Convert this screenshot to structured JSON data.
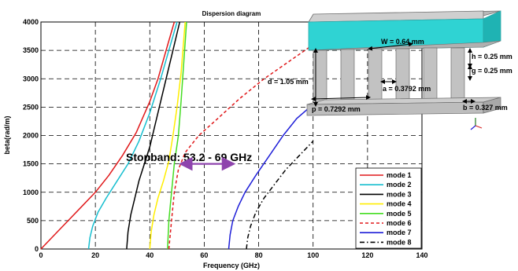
{
  "chart_data": {
    "type": "line",
    "title": "Dispersion diagram",
    "xlabel": "Frequency (GHz)",
    "ylabel": "beta(rad/m)",
    "xlim": [
      0,
      140
    ],
    "ylim": [
      0,
      4000
    ],
    "xticks": [
      "0",
      "20",
      "40",
      "60",
      "80",
      "100",
      "120",
      "140"
    ],
    "yticks": [
      "0",
      "500",
      "1000",
      "1500",
      "2000",
      "2500",
      "3000",
      "3500",
      "4000"
    ],
    "grid": true,
    "legend_position": "bottom-right",
    "series": [
      {
        "name": "mode 1",
        "color": "#e0191b",
        "dash": "solid",
        "x": [
          0,
          5,
          10,
          15,
          20,
          25,
          30,
          35,
          40,
          43,
          46,
          49
        ],
        "y": [
          0,
          250,
          500,
          750,
          1000,
          1300,
          1650,
          2050,
          2600,
          3000,
          3500,
          4000
        ]
      },
      {
        "name": "mode 2",
        "color": "#17becf",
        "dash": "solid",
        "x": [
          17.5,
          18,
          19,
          21,
          24,
          28,
          32,
          36,
          40,
          44,
          47,
          50
        ],
        "y": [
          0,
          200,
          400,
          650,
          900,
          1200,
          1500,
          1900,
          2400,
          3000,
          3500,
          4000
        ]
      },
      {
        "name": "mode 3",
        "color": "#000000",
        "dash": "solid",
        "x": [
          31.5,
          32,
          33,
          34.5,
          36,
          38,
          40,
          42,
          44,
          46,
          48.5,
          51
        ],
        "y": [
          0,
          300,
          600,
          900,
          1200,
          1500,
          1800,
          2200,
          2600,
          3000,
          3500,
          4000
        ]
      },
      {
        "name": "mode 4",
        "color": "#ffee00",
        "dash": "solid",
        "x": [
          40,
          40.5,
          41.5,
          43,
          45,
          47,
          48.5,
          50,
          51.5,
          53
        ],
        "y": [
          0,
          300,
          600,
          900,
          1200,
          1550,
          2000,
          2500,
          3100,
          4000
        ]
      },
      {
        "name": "mode 5",
        "color": "#44dd22",
        "dash": "solid",
        "x": [
          46.5,
          47,
          48,
          49,
          50.5,
          51.5,
          52.5,
          53.5
        ],
        "y": [
          0,
          500,
          1000,
          1500,
          2000,
          2600,
          3300,
          4000
        ]
      },
      {
        "name": "mode 6",
        "color": "#e0191b",
        "dash": "dashed",
        "x": [
          47,
          48,
          49,
          50.5,
          53,
          58,
          65,
          73,
          82,
          91,
          100
        ],
        "y": [
          0,
          500,
          1000,
          1400,
          1700,
          2000,
          2300,
          2650,
          3000,
          3300,
          3600
        ]
      },
      {
        "name": "mode 7",
        "color": "#1f1fd8",
        "dash": "solid",
        "x": [
          69,
          69.5,
          70.5,
          72.5,
          75,
          79,
          84,
          89,
          94,
          100
        ],
        "y": [
          0,
          250,
          500,
          750,
          1000,
          1300,
          1650,
          2000,
          2300,
          2550
        ]
      },
      {
        "name": "mode 8",
        "color": "#000000",
        "dash": "dashdot",
        "x": [
          75.5,
          76,
          77,
          79,
          82,
          86,
          90,
          95,
          100
        ],
        "y": [
          0,
          200,
          400,
          650,
          900,
          1150,
          1400,
          1650,
          1900
        ]
      }
    ],
    "annotations": {
      "stopband": "Stopband: 53.2 - 69 GHz",
      "dims": [
        "W = 0.64 mm",
        "h = 0.25 mm",
        "g = 0.25 mm",
        "d = 1.05 mm",
        "a = 0.3792 mm",
        "p = 0.7292 mm",
        "b = 0.327 mm"
      ]
    },
    "stopband_range": [
      53.2,
      69
    ],
    "stopband_beta": 1500
  }
}
